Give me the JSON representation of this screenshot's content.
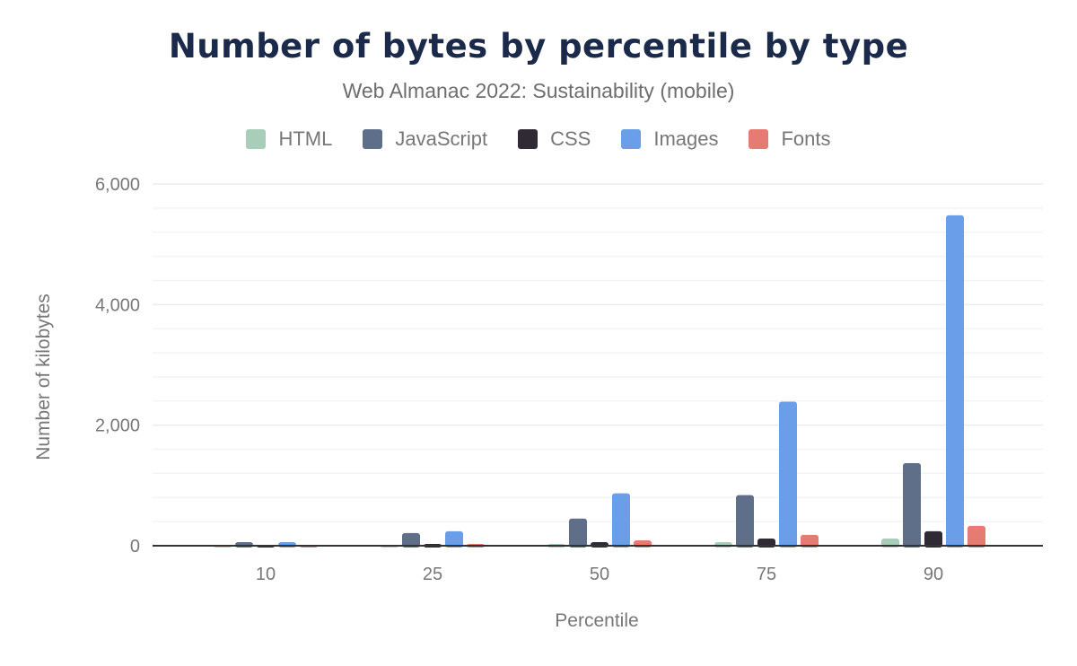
{
  "chart_data": {
    "type": "bar",
    "title": "Number of bytes by percentile by type",
    "subtitle": "Web Almanac 2022: Sustainability (mobile)",
    "xlabel": "Percentile",
    "ylabel": "Number of kilobytes",
    "categories": [
      "10",
      "25",
      "50",
      "75",
      "90"
    ],
    "ylim": [
      0,
      6000
    ],
    "yticks": [
      "0",
      "2,000",
      "4,000",
      "6,000"
    ],
    "ytick_values": [
      0,
      2000,
      4000,
      6000
    ],
    "minor_grid_step": 400,
    "grid": true,
    "legend_placement": "top",
    "series": [
      {
        "name": "HTML",
        "color": "#a8cdb9",
        "values": [
          10,
          15,
          30,
          60,
          120
        ]
      },
      {
        "name": "JavaScript",
        "color": "#5f6f8a",
        "values": [
          60,
          210,
          450,
          840,
          1370
        ]
      },
      {
        "name": "CSS",
        "color": "#2f2a33",
        "values": [
          10,
          30,
          60,
          120,
          240
        ]
      },
      {
        "name": "Images",
        "color": "#6b9ee8",
        "values": [
          60,
          240,
          870,
          2390,
          5480
        ]
      },
      {
        "name": "Fonts",
        "color": "#e57b73",
        "values": [
          10,
          30,
          90,
          180,
          330
        ]
      }
    ]
  }
}
